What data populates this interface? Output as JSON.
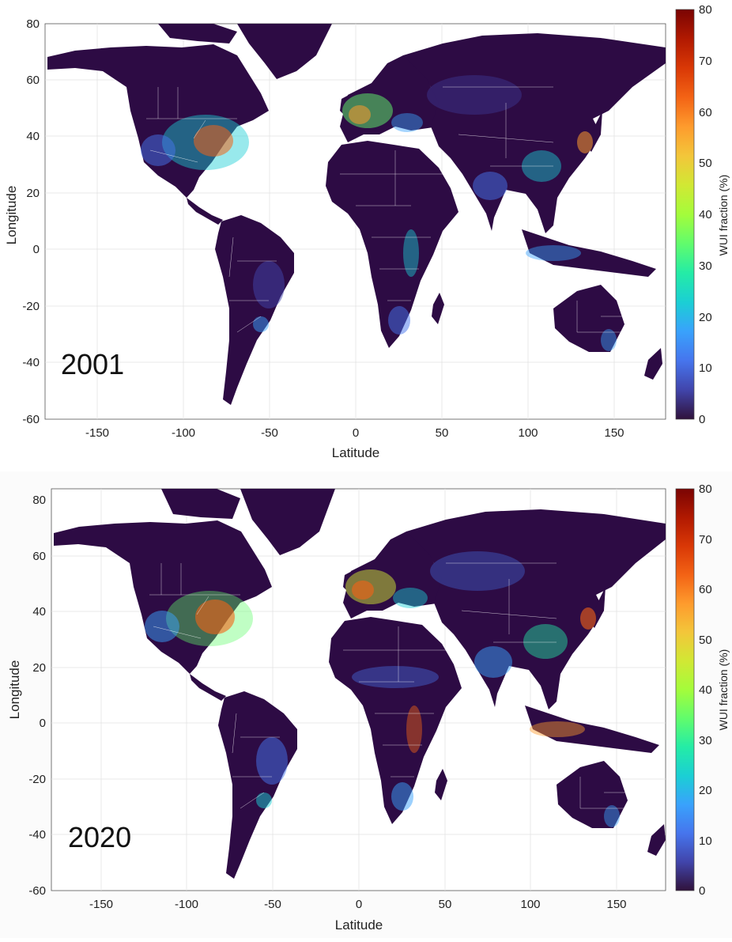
{
  "colors": {
    "land_base": "#2d0b44",
    "borders": "#ffffff",
    "grid": "#dddddd",
    "ocean": "#ffffff"
  },
  "colormap": [
    "#30123b",
    "#4145ab",
    "#4675ed",
    "#39a2fc",
    "#1bcfd4",
    "#24eca6",
    "#61fc6c",
    "#a4fc3b",
    "#d1e834",
    "#f3c63a",
    "#fe9b2d",
    "#f36315",
    "#d93806",
    "#b11901",
    "#7a0403"
  ],
  "maps": [
    {
      "year_label": "2001",
      "xlabel": "Latitude",
      "ylabel": "Longitude",
      "x_ticks": [
        "-150",
        "-100",
        "-50",
        "0",
        "50",
        "100",
        "150"
      ],
      "y_ticks": [
        "80",
        "60",
        "40",
        "20",
        "0",
        "-20",
        "-40",
        "-60"
      ],
      "colorbar": {
        "label": "WUI fraction (%)",
        "ticks": [
          "80",
          "70",
          "60",
          "50",
          "40",
          "30",
          "20",
          "10",
          "0"
        ],
        "range": [
          0,
          80
        ]
      }
    },
    {
      "year_label": "2020",
      "xlabel": "Latitude",
      "ylabel": "Longitude",
      "x_ticks": [
        "-150",
        "-100",
        "-50",
        "0",
        "50",
        "100",
        "150"
      ],
      "y_ticks": [
        "80",
        "60",
        "40",
        "20",
        "0",
        "-20",
        "-40",
        "-60"
      ],
      "colorbar": {
        "label": "WUI fraction (%)",
        "ticks": [
          "80",
          "70",
          "60",
          "50",
          "40",
          "30",
          "20",
          "10",
          "0"
        ],
        "range": [
          0,
          80
        ]
      }
    }
  ]
}
